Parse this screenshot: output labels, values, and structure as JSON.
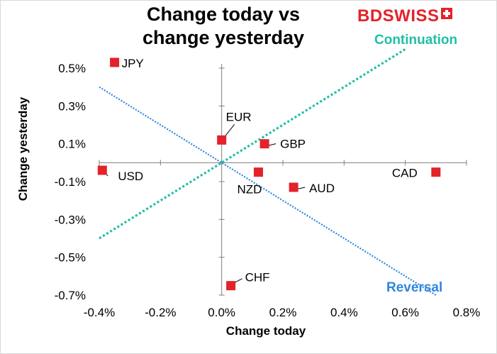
{
  "brand": {
    "logo_text": "BDSWISS"
  },
  "chart_data": {
    "type": "scatter",
    "title": "Change today vs change yesterday",
    "title_lines": [
      "Change today vs",
      "change yesterday"
    ],
    "xlabel": "Change today",
    "ylabel": "Change yesterday",
    "xlim": [
      -0.4,
      0.8
    ],
    "ylim": [
      -0.7,
      0.5
    ],
    "x_ticks": [
      -0.4,
      -0.2,
      0.0,
      0.2,
      0.4,
      0.6,
      0.8
    ],
    "x_tick_labels": [
      "-0.4%",
      "-0.2%",
      "0.0%",
      "0.2%",
      "0.4%",
      "0.6%",
      "0.8%"
    ],
    "y_ticks": [
      0.5,
      0.3,
      0.1,
      -0.1,
      -0.3,
      -0.5,
      -0.7
    ],
    "y_tick_labels": [
      "0.5%",
      "0.3%",
      "0.1%",
      "-0.1%",
      "-0.3%",
      "-0.5%",
      "-0.7%"
    ],
    "grid": false,
    "marker_color": "#e3222a",
    "points": [
      {
        "label": "JPY",
        "x": -0.35,
        "y": 0.53
      },
      {
        "label": "USD",
        "x": -0.39,
        "y": -0.04
      },
      {
        "label": "EUR",
        "x": 0.0,
        "y": 0.12
      },
      {
        "label": "GBP",
        "x": 0.14,
        "y": 0.1
      },
      {
        "label": "NZD",
        "x": 0.12,
        "y": -0.05
      },
      {
        "label": "AUD",
        "x": 0.235,
        "y": -0.13
      },
      {
        "label": "CAD",
        "x": 0.7,
        "y": -0.05
      },
      {
        "label": "CHF",
        "x": 0.03,
        "y": -0.65
      }
    ],
    "reference_lines": [
      {
        "name": "Continuation",
        "color": "#1fbfa5",
        "from": [
          -0.4,
          -0.4
        ],
        "to": [
          0.6,
          0.6
        ]
      },
      {
        "name": "Reversal",
        "color": "#2e86de",
        "from": [
          -0.4,
          0.4
        ],
        "to": [
          0.7,
          -0.7
        ]
      }
    ]
  }
}
